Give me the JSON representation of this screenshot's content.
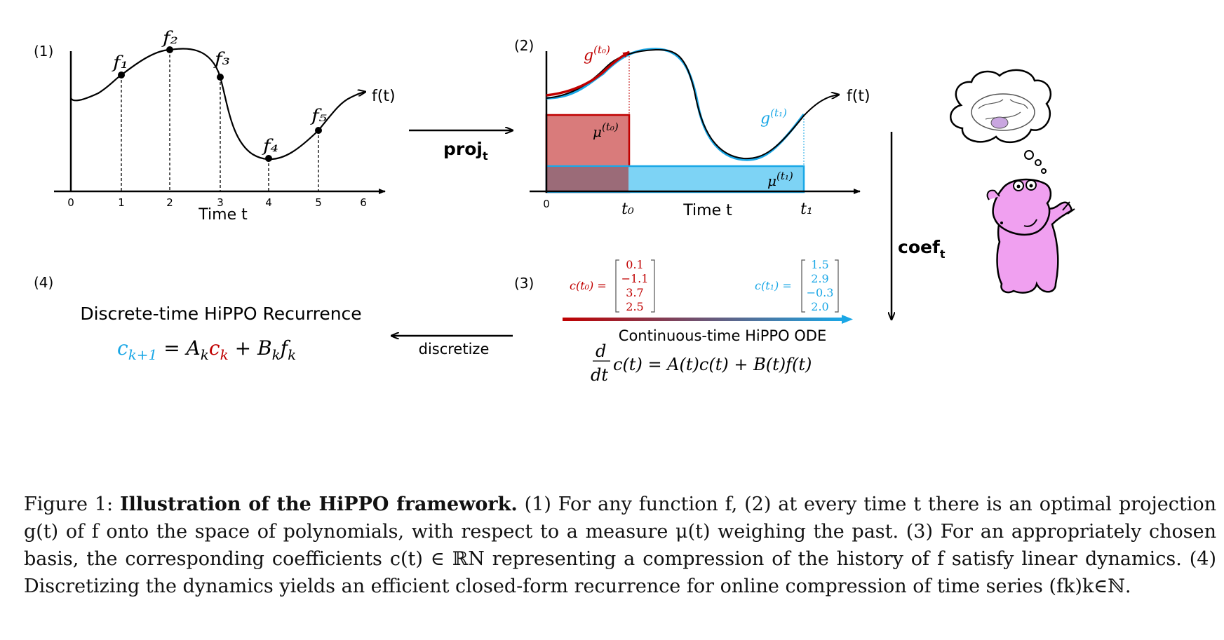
{
  "colors": {
    "red": "#c00000",
    "blue": "#1aa7e6",
    "red_fill": "#d97b7b",
    "blue_fill": "#7dd3f5",
    "black": "#000000"
  },
  "panel1": {
    "tag": "(1)",
    "xlabel": "Time t",
    "ticks": [
      "0",
      "1",
      "2",
      "3",
      "4",
      "5",
      "6"
    ],
    "point_labels": [
      "f1",
      "f2",
      "f3",
      "f4",
      "f5"
    ],
    "fn_label": "f(t)"
  },
  "panel2": {
    "tag": "(2)",
    "g0": "g(t0)",
    "g1": "g(t1)",
    "mu0": "μ(t0)",
    "mu1": "μ(t1)",
    "fn_label": "f(t)",
    "x0": "0",
    "t0": "t0",
    "t1": "t1",
    "xlabel": "Time t"
  },
  "arrows": {
    "proj": "proj_t",
    "coef": "coef_t",
    "discretize": "discretize"
  },
  "panel3": {
    "tag": "(3)",
    "c0_label": "c(t0) =",
    "c0_values": [
      "0.1",
      "−1.1",
      "3.7",
      "2.5"
    ],
    "c1_label": "c(t1) =",
    "c1_values": [
      "1.5",
      "2.9",
      "−0.3",
      "2.0"
    ],
    "title": "Continuous-time HiPPO ODE",
    "equation": "d/dt c(t) = A(t)c(t) + B(t)f(t)"
  },
  "panel4": {
    "tag": "(4)",
    "title": "Discrete-time HiPPO Recurrence",
    "equation": "c_{k+1} = A_k c_k + B_k f_k"
  },
  "caption": {
    "label": "Figure 1:",
    "bold": "Illustration of the HiPPO framework.",
    "text": "(1) For any function f, (2) at every time t there is an optimal projection g(t) of f onto the space of polynomials, with respect to a measure μ(t) weighing the past. (3) For an appropriately chosen basis, the corresponding coefficients c(t) ∈ ℝN representing a compression of the history of f satisfy linear dynamics. (4) Discretizing the dynamics yields an efficient closed-form recurrence for online compression of time series (fk)k∈ℕ."
  }
}
